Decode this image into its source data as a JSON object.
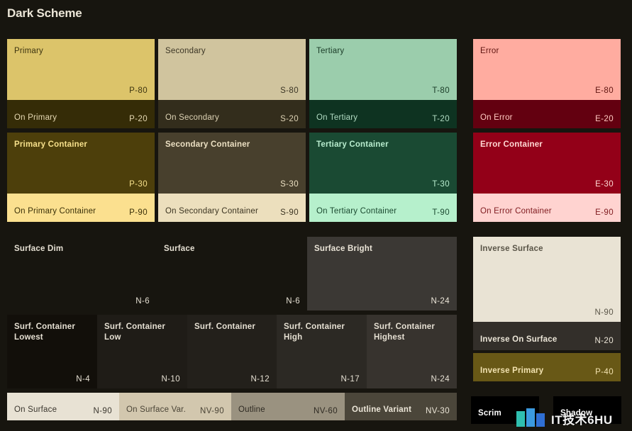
{
  "title": "Dark Scheme",
  "swatches": [
    {
      "id": "primary",
      "name": "Primary",
      "tone": "P-80",
      "bg": "#dcc46a",
      "fg": "#3d3410"
    },
    {
      "id": "on-primary",
      "name": "On Primary",
      "tone": "P-20",
      "bg": "#352c07",
      "fg": "#e5d8b2"
    },
    {
      "id": "secondary",
      "name": "Secondary",
      "tone": "S-80",
      "bg": "#d0c49e",
      "fg": "#3b3525"
    },
    {
      "id": "on-secondary",
      "name": "On Secondary",
      "tone": "S-20",
      "bg": "#332d1c",
      "fg": "#ddd2b4"
    },
    {
      "id": "tertiary",
      "name": "Tertiary",
      "tone": "T-80",
      "bg": "#9bcdac",
      "fg": "#1a3b27"
    },
    {
      "id": "on-tertiary",
      "name": "On Tertiary",
      "tone": "T-20",
      "bg": "#0e3321",
      "fg": "#b2dcc3"
    },
    {
      "id": "error",
      "name": "Error",
      "tone": "E-80",
      "bg": "#ffaca0",
      "fg": "#5e1410"
    },
    {
      "id": "on-error",
      "name": "On Error",
      "tone": "E-20",
      "bg": "#630010",
      "fg": "#ffc9c2"
    },
    {
      "id": "primary-container",
      "name": "Primary Container",
      "tone": "P-30",
      "bg": "#4d3f0b",
      "fg": "#f6e08b"
    },
    {
      "id": "on-primary-container",
      "name": "On Primary Container",
      "tone": "P-90",
      "bg": "#fbe08f",
      "fg": "#3a3008"
    },
    {
      "id": "secondary-container",
      "name": "Secondary Container",
      "tone": "S-30",
      "bg": "#48402d",
      "fg": "#ece0c3"
    },
    {
      "id": "on-secondary-container",
      "name": "On Secondary Container",
      "tone": "S-90",
      "bg": "#ecdfbd",
      "fg": "#3b3421"
    },
    {
      "id": "tertiary-container",
      "name": "Tertiary Container",
      "tone": "T-30",
      "bg": "#1a4a33",
      "fg": "#b8ecce"
    },
    {
      "id": "on-tertiary-container",
      "name": "On Tertiary Container",
      "tone": "T-90",
      "bg": "#b6f0cc",
      "fg": "#1b4a30"
    },
    {
      "id": "error-container",
      "name": "Error Container",
      "tone": "E-30",
      "bg": "#930018",
      "fg": "#ffd9d4"
    },
    {
      "id": "on-error-container",
      "name": "On Error Container",
      "tone": "E-90",
      "bg": "#ffd3d0",
      "fg": "#7e1a1e"
    },
    {
      "id": "surface-dim",
      "name": "Surface Dim",
      "tone": "N-6",
      "bg": "#17150f",
      "fg": "#e6e0d3"
    },
    {
      "id": "surface",
      "name": "Surface",
      "tone": "N-6",
      "bg": "#17150f",
      "fg": "#e6e0d3"
    },
    {
      "id": "surface-bright",
      "name": "Surface Bright",
      "tone": "N-24",
      "bg": "#3b3834",
      "fg": "#ebe5d8"
    },
    {
      "id": "inverse-surface",
      "name": "Inverse Surface",
      "tone": "N-90",
      "bg": "#e9e3d4",
      "fg": "#5a5548"
    },
    {
      "id": "inverse-on-surface",
      "name": "Inverse On Surface",
      "tone": "N-20",
      "bg": "#332f2a",
      "fg": "#ece6d8"
    },
    {
      "id": "inverse-primary",
      "name": "Inverse Primary",
      "tone": "P-40",
      "bg": "#685816",
      "fg": "#f2e2b0"
    },
    {
      "id": "surf-container-lowest",
      "name": "Surf. Container\nLowest",
      "tone": "N-4",
      "bg": "#120f0a",
      "fg": "#e6e0d3"
    },
    {
      "id": "surf-container-low",
      "name": "Surf. Container\nLow",
      "tone": "N-10",
      "bg": "#1f1c17",
      "fg": "#e6e0d3"
    },
    {
      "id": "surf-container",
      "name": "Surf. Container",
      "tone": "N-12",
      "bg": "#23201b",
      "fg": "#e6e0d3"
    },
    {
      "id": "surf-container-high",
      "name": "Surf. Container\nHigh",
      "tone": "N-17",
      "bg": "#2c2924",
      "fg": "#e6e0d3"
    },
    {
      "id": "surf-container-highest",
      "name": "Surf. Container\nHighest",
      "tone": "N-24",
      "bg": "#37332e",
      "fg": "#e6e0d3"
    },
    {
      "id": "on-surface",
      "name": "On Surface",
      "tone": "N-90",
      "bg": "#e8e2d4",
      "fg": "#3a362e"
    },
    {
      "id": "on-surface-variant",
      "name": "On Surface Var.",
      "tone": "NV-90",
      "bg": "#d2c7ae",
      "fg": "#4a4436"
    },
    {
      "id": "outline",
      "name": "Outline",
      "tone": "NV-60",
      "bg": "#9a9280",
      "fg": "#2e2a22"
    },
    {
      "id": "outline-variant",
      "name": "Outline Variant",
      "tone": "NV-30",
      "bg": "#4b463a",
      "fg": "#ece6d8"
    },
    {
      "id": "scrim",
      "name": "Scrim",
      "tone": "",
      "bg": "#000000",
      "fg": "#ffffff"
    },
    {
      "id": "shadow",
      "name": "Shadow",
      "tone": "",
      "bg": "#000000",
      "fg": "#ffffff"
    }
  ],
  "watermark": {
    "text": "IT技术6HU"
  }
}
